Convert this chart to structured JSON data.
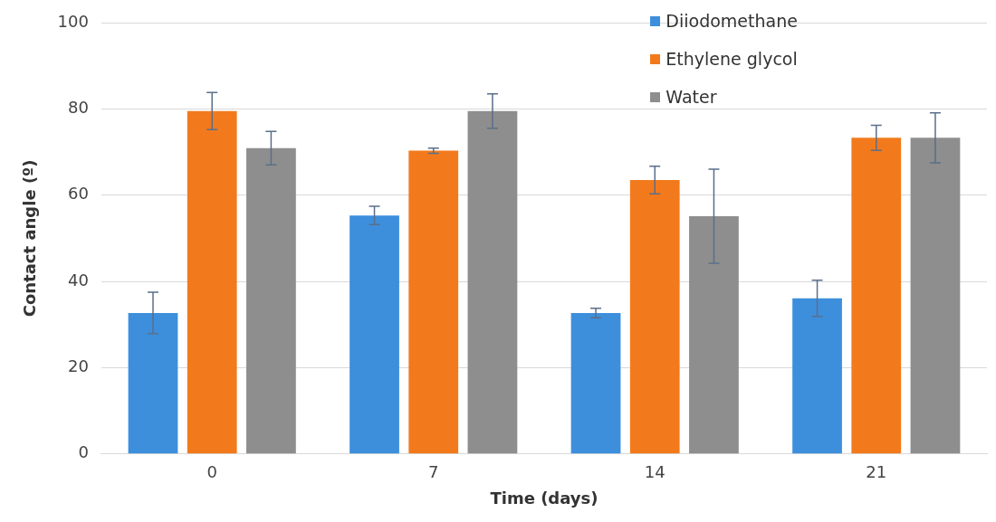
{
  "chart_data": {
    "type": "bar",
    "xlabel": "Time (days)",
    "ylabel": "Contact angle (º)",
    "categories": [
      "0",
      "7",
      "14",
      "21"
    ],
    "series": [
      {
        "name": "Diiodomethane",
        "color": "#3d8fdc",
        "values": [
          32.7,
          55.3,
          32.7,
          36.1
        ],
        "errors": [
          4.8,
          2.1,
          1.1,
          4.2
        ]
      },
      {
        "name": "Ethylene glycol",
        "color": "#f27a1c",
        "values": [
          79.5,
          70.3,
          63.5,
          73.3
        ],
        "errors": [
          4.3,
          0.6,
          3.2,
          2.9
        ]
      },
      {
        "name": "Water",
        "color": "#8e8e8e",
        "values": [
          70.9,
          79.5,
          55.1,
          73.3
        ],
        "errors": [
          3.9,
          4.0,
          10.9,
          5.8
        ]
      }
    ],
    "ylim": [
      0,
      100
    ],
    "yticks": [
      0,
      20,
      40,
      60,
      80,
      100
    ],
    "grid": "y",
    "legend": "top right"
  }
}
